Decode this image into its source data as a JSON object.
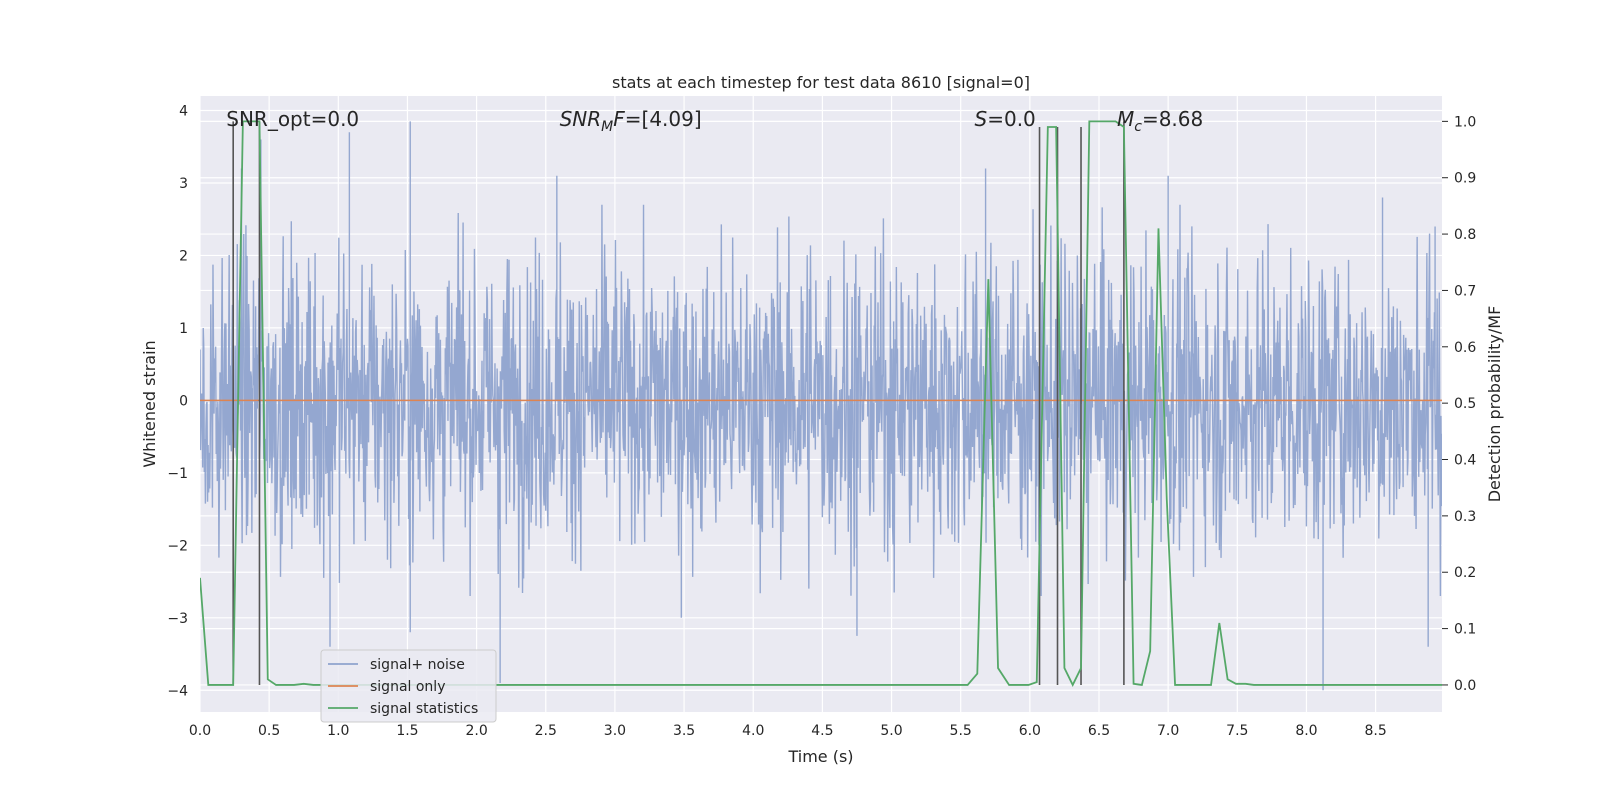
{
  "chart_data": {
    "type": "line",
    "title": "stats at each timestep for test data 8610 [signal=0]",
    "xlabel": "Time (s)",
    "ylabel": "Whitened strain",
    "y2label": "Detection probability/MF",
    "xlim": [
      0.0,
      8.98
    ],
    "ylim": [
      -4.3,
      4.2
    ],
    "y2lim": [
      -0.048,
      1.045
    ],
    "xticks": [
      "0.0",
      "0.5",
      "1.0",
      "1.5",
      "2.0",
      "2.5",
      "3.0",
      "3.5",
      "4.0",
      "4.5",
      "5.0",
      "5.5",
      "6.0",
      "6.5",
      "7.0",
      "7.5",
      "8.0",
      "8.5"
    ],
    "yticks": [
      "4",
      "3",
      "2",
      "1",
      "0",
      "−1",
      "−2",
      "−3",
      "−4"
    ],
    "y2ticks": [
      "1.0",
      "0.9",
      "0.8",
      "0.7",
      "0.6",
      "0.5",
      "0.4",
      "0.3",
      "0.2",
      "0.1",
      "0.0"
    ],
    "grid": true,
    "annotations": [
      {
        "name": "snr-opt-annotation",
        "text": "SNR_opt=0.0",
        "x": 0.19,
        "y": 3.88
      },
      {
        "name": "snr-mf-annotation",
        "sym": "SNR",
        "sub": "M",
        "tail": "F=[4.09]",
        "x": 2.6,
        "y": 3.88
      },
      {
        "name": "s-annotation",
        "sym": "S",
        "sub": "",
        "tail": "=0.0",
        "x": 5.6,
        "y": 3.88
      },
      {
        "name": "mc-annotation",
        "sym": "M",
        "sub": "c",
        "tail": "=8.68",
        "x": 6.63,
        "y": 3.88
      }
    ],
    "legend": {
      "placement": "lower-left",
      "entries": [
        {
          "label": "signal+ noise",
          "color": "#8fa3ce"
        },
        {
          "label": "signal only",
          "color": "#dd8452"
        },
        {
          "label": "signal statistics",
          "color": "#55a868"
        }
      ]
    },
    "series": [
      {
        "name": "signal+ noise",
        "color": "#8fa3ce",
        "axis": "left",
        "note_values": "dense gaussian-like noise, amplitude envelope ±2.6, occasional spikes",
        "typical_amplitude": 1.0,
        "peaks": [
          [
            0.3,
            3.2
          ],
          [
            0.44,
            3.6
          ],
          [
            1.08,
            3.7
          ],
          [
            1.52,
            3.85
          ],
          [
            2.58,
            3.1
          ],
          [
            5.68,
            3.2
          ],
          [
            7.0,
            3.1
          ],
          [
            8.55,
            2.8
          ],
          [
            8.93,
            2.4
          ]
        ],
        "troughs": [
          [
            0.94,
            -3.4
          ],
          [
            1.52,
            -3.2
          ],
          [
            2.17,
            -3.9
          ],
          [
            3.48,
            -3.0
          ],
          [
            4.75,
            -3.25
          ],
          [
            8.12,
            -4.0
          ],
          [
            8.88,
            -3.4
          ]
        ]
      },
      {
        "name": "signal only",
        "color": "#dd8452",
        "axis": "left",
        "x": [
          0.0,
          8.98
        ],
        "y": [
          0.0,
          0.0
        ]
      },
      {
        "name": "signal statistics",
        "color": "#55a868",
        "axis": "right",
        "x": [
          0.0,
          0.06,
          0.16,
          0.24,
          0.31,
          0.4,
          0.43,
          0.49,
          0.55,
          0.68,
          0.75,
          0.82,
          5.55,
          5.62,
          5.7,
          5.77,
          5.85,
          5.99,
          6.05,
          6.13,
          6.19,
          6.25,
          6.31,
          6.37,
          6.43,
          6.5,
          6.62,
          6.68,
          6.75,
          6.81,
          6.87,
          6.93,
          6.99,
          7.05,
          7.12,
          7.18,
          7.24,
          7.31,
          7.37,
          7.43,
          7.49,
          7.56,
          7.62,
          8.98
        ],
        "y": [
          0.19,
          0.0,
          0.0,
          0.0,
          1.0,
          1.0,
          1.0,
          0.01,
          0.0,
          0.0,
          0.002,
          0.0,
          0.0,
          0.02,
          0.72,
          0.03,
          0.0,
          0.0,
          0.005,
          0.99,
          0.99,
          0.03,
          0.0,
          0.03,
          1.0,
          1.0,
          1.0,
          0.99,
          0.002,
          0.0,
          0.06,
          0.81,
          0.33,
          0.0,
          0.0,
          0.0,
          0.0,
          0.0,
          0.11,
          0.01,
          0.002,
          0.002,
          0.0,
          0.0
        ]
      }
    ],
    "vertical_markers": {
      "color": "#555555",
      "x": [
        0.24,
        0.43,
        6.07,
        6.2,
        6.37,
        6.68
      ],
      "y_top": [
        1.0,
        1.0,
        0.99,
        0.99,
        0.99,
        1.0
      ]
    }
  }
}
